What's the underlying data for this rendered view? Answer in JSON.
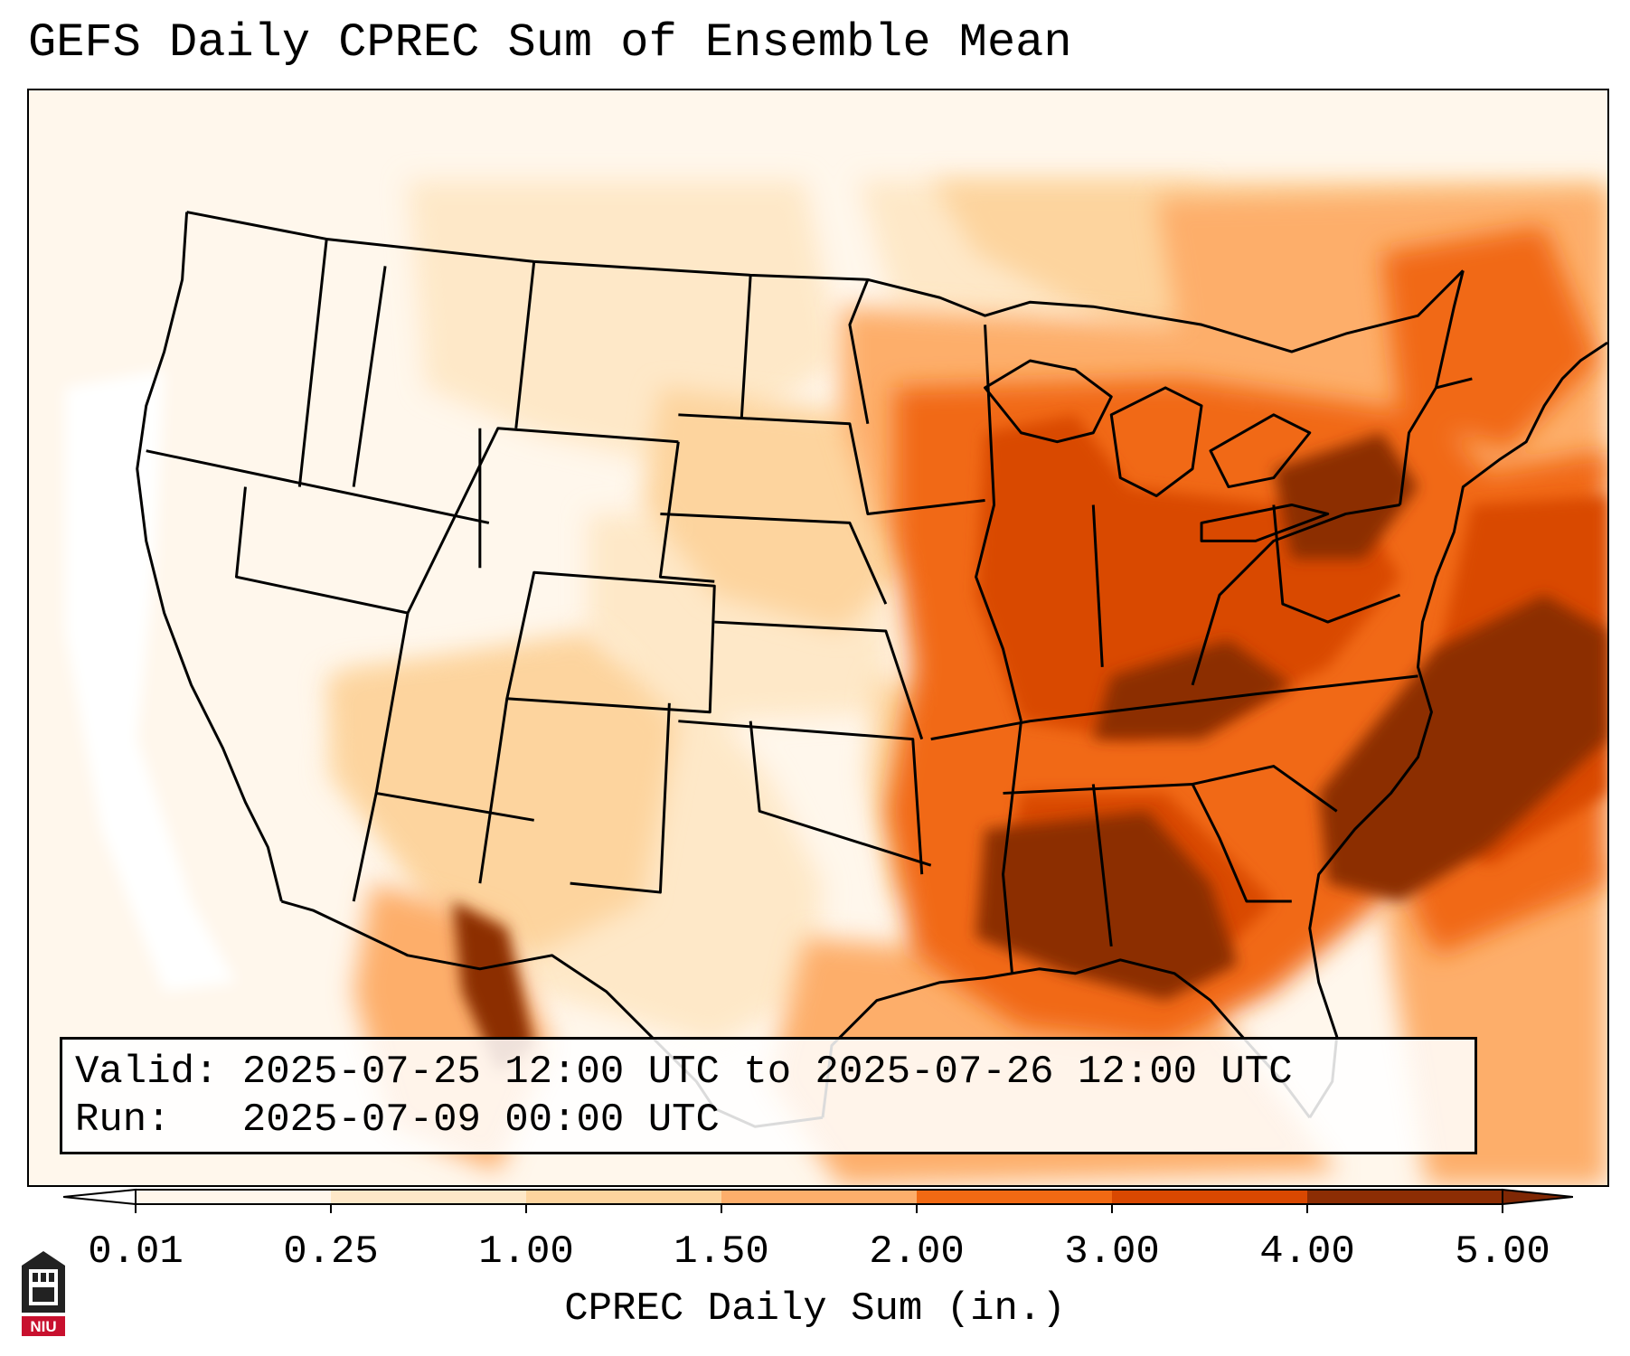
{
  "title": "GEFS Daily CPREC Sum of Ensemble Mean",
  "info": {
    "valid": "Valid: 2025-07-25 12:00 UTC to 2025-07-26 12:00 UTC",
    "run": "Run:   2025-07-09 00:00 UTC"
  },
  "colorbar": {
    "label": "CPREC Daily Sum (in.)",
    "ticks": [
      "0.01",
      "0.25",
      "1.00",
      "1.50",
      "2.00",
      "3.00",
      "4.00",
      "5.00"
    ],
    "under_color": "#ffffff",
    "colors": [
      "#fff7ec",
      "#fee8c8",
      "#fdd49e",
      "#fdae6b",
      "#f16913",
      "#d94801",
      "#8c2d04"
    ],
    "over_color": "#7f2704",
    "extend": "both"
  },
  "logo": {
    "text": "NIU",
    "color": "#c8102e"
  },
  "map": {
    "projection": "lambert-conformal",
    "region": "Contiguous United States",
    "features": [
      "state-boundaries",
      "coastlines",
      "national-borders"
    ]
  }
}
